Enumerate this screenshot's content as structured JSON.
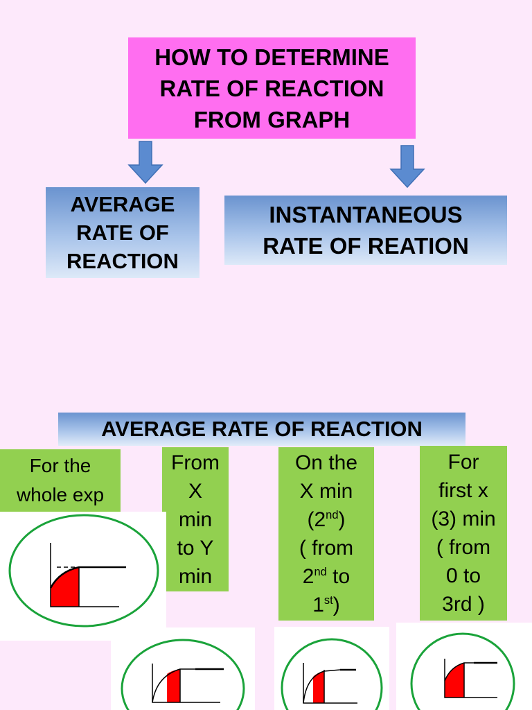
{
  "title": {
    "lines": [
      "HOW TO DETERMINE",
      "RATE OF REACTION",
      "FROM GRAPH"
    ]
  },
  "branches": {
    "average": [
      "AVERAGE",
      "RATE OF",
      "REACTION"
    ],
    "instantaneous": [
      "INSTANTANEOUS",
      "RATE OF REATION"
    ]
  },
  "section": {
    "title": "AVERAGE RATE OF REACTION"
  },
  "methods": {
    "whole": [
      "For the",
      "whole exp"
    ],
    "x_to_y": [
      "From",
      "X",
      "min",
      "to Y",
      "min"
    ],
    "on_x": {
      "l1": "On the",
      "l2": "X min",
      "l3_pre": "(2",
      "l3_sup": "nd",
      "l3_post": ")",
      "l4": "( from",
      "l5_pre": "2",
      "l5_sup": "nd",
      "l5_post": " to",
      "l6_pre": "1",
      "l6_sup": "st",
      "l6_post": ")"
    },
    "first_x": [
      "For",
      "first x",
      "(3) min",
      "( from",
      "0 to",
      "3rd )"
    ]
  },
  "colors": {
    "background": "#fde9fb",
    "title_fill": "#ff6ef0",
    "blue_fill": "#8fb0e0",
    "green_fill": "#92d050",
    "ellipse_stroke": "#1aa33a",
    "area_fill": "#ff0000",
    "arrow_fill": "#5b8bd0"
  }
}
